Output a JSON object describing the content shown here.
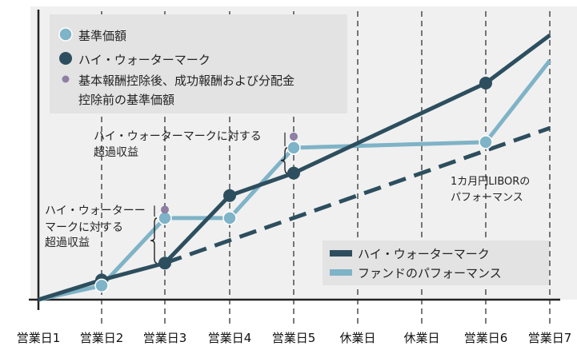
{
  "chart_data": {
    "type": "line",
    "categories": [
      "営業日1",
      "営業日2",
      "営業日3",
      "営業日4",
      "営業日5",
      "休業日",
      "休業日",
      "営業日6",
      "営業日7"
    ],
    "series": [
      {
        "name": "ハイ・ウォーターマーク",
        "values": [
          0,
          7,
          13,
          37,
          45,
          null,
          null,
          77,
          94
        ],
        "color": "#2d4e5e"
      },
      {
        "name": "ファンドのパフォーマンス",
        "values": [
          0,
          5,
          29,
          29,
          54,
          null,
          null,
          56,
          85
        ],
        "color": "#7fb3c7"
      },
      {
        "name": "1カ月円LIBORのパフォーマンス",
        "values": [
          null,
          null,
          13,
          null,
          null,
          null,
          null,
          null,
          61
        ],
        "color": "#2d4e5e",
        "dashed": true
      }
    ],
    "points": {
      "nav": {
        "label": "基準価額",
        "values": [
          5,
          29,
          29,
          54,
          56
        ],
        "color": "#7fb3c7"
      },
      "hwm": {
        "label": "ハイ・ウォーターマーク",
        "values": [
          7,
          13,
          37,
          45,
          77
        ],
        "color": "#2d4e5e"
      },
      "pre_fee": {
        "label": "基本報酬控除後、成功報酬および分配金控除前の基準価額",
        "values": [
          32,
          58
        ],
        "color": "#8e7fa3"
      }
    },
    "annotations": {
      "excess_left": [
        "ハイ・ウォーターー",
        "マークに対する",
        "超過収益"
      ],
      "excess_top": [
        "ハイ・ウォーターマークに対する",
        "超過収益"
      ],
      "libor": [
        "1カ月円LIBORの",
        "パフォーマンス"
      ]
    },
    "legend_top": [
      {
        "label": "基準価額",
        "marker": "circle-light"
      },
      {
        "label": "ハイ・ウォーターマーク",
        "marker": "circle-dark"
      },
      {
        "label": "基本報酬控除後、成功報酬および分配金",
        "label2": "控除前の基準価額",
        "marker": "dot-purple"
      }
    ],
    "legend_bottom": [
      {
        "label": "ハイ・ウォーターマーク",
        "color": "#2d4e5e"
      },
      {
        "label": "ファンドのパフォーマンス",
        "color": "#7fb3c7"
      }
    ],
    "grid": "vertical-dashed",
    "legend_placement": "top-left and bottom-right"
  },
  "colors": {
    "background": "#f0f0f0",
    "legend_box": "#e3e3e3",
    "dark": "#2d4e5e",
    "light": "#7fb3c7",
    "purple": "#8e7fa3"
  }
}
